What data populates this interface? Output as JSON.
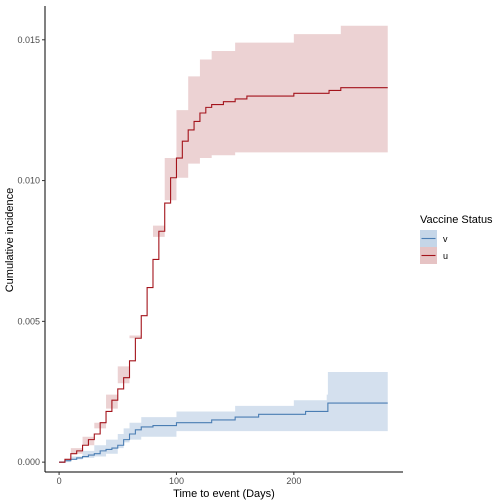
{
  "chart_data": {
    "type": "line",
    "subtype": "step",
    "title": "",
    "xlabel": "Time to event (Days)",
    "ylabel": "Cumulative incidence",
    "xlim": [
      -12,
      293
    ],
    "ylim": [
      -0.00035,
      0.0162
    ],
    "x_ticks": [
      0,
      100,
      200
    ],
    "x_tick_labels": [
      "0",
      "100",
      "200"
    ],
    "y_ticks": [
      0.0,
      0.005,
      0.01,
      0.015
    ],
    "y_tick_labels": [
      "0.000",
      "0.005",
      "0.010",
      "0.015"
    ],
    "grid": false,
    "legend": {
      "title": "Vaccine Status",
      "position": "right",
      "entries": [
        "v",
        "u"
      ]
    },
    "series": [
      {
        "name": "v",
        "color": "#4a7db3",
        "band_color": "#c5d6e8",
        "points": [
          [
            0,
            0.0
          ],
          [
            5,
            5e-05
          ],
          [
            10,
            0.0001
          ],
          [
            15,
            0.00015
          ],
          [
            20,
            0.0002
          ],
          [
            25,
            0.00025
          ],
          [
            30,
            0.0003
          ],
          [
            35,
            0.0004
          ],
          [
            40,
            0.00045
          ],
          [
            45,
            0.0005
          ],
          [
            50,
            0.0006
          ],
          [
            55,
            0.0008
          ],
          [
            60,
            0.001
          ],
          [
            65,
            0.00115
          ],
          [
            70,
            0.00125
          ],
          [
            80,
            0.0013
          ],
          [
            100,
            0.0014
          ],
          [
            130,
            0.0015
          ],
          [
            150,
            0.0016
          ],
          [
            170,
            0.0017
          ],
          [
            200,
            0.0017
          ],
          [
            210,
            0.0018
          ],
          [
            228,
            0.0018
          ],
          [
            229,
            0.0021
          ],
          [
            280,
            0.0021
          ]
        ],
        "lower": [
          [
            0,
            0.0
          ],
          [
            10,
            3e-05
          ],
          [
            20,
            0.0001
          ],
          [
            30,
            0.00015
          ],
          [
            40,
            0.0002
          ],
          [
            50,
            0.0003
          ],
          [
            55,
            0.0005
          ],
          [
            60,
            0.0007
          ],
          [
            70,
            0.0008
          ],
          [
            100,
            0.0009
          ],
          [
            150,
            0.0011
          ],
          [
            200,
            0.0011
          ],
          [
            228,
            0.0011
          ],
          [
            229,
            0.0011
          ],
          [
            280,
            0.0011
          ]
        ],
        "upper": [
          [
            0,
            0.0
          ],
          [
            10,
            0.0002
          ],
          [
            20,
            0.0004
          ],
          [
            30,
            0.0006
          ],
          [
            40,
            0.0008
          ],
          [
            50,
            0.001
          ],
          [
            55,
            0.0012
          ],
          [
            60,
            0.0014
          ],
          [
            70,
            0.0016
          ],
          [
            100,
            0.0018
          ],
          [
            150,
            0.002
          ],
          [
            200,
            0.0022
          ],
          [
            228,
            0.0024
          ],
          [
            229,
            0.0032
          ],
          [
            280,
            0.0032
          ]
        ]
      },
      {
        "name": "u",
        "color": "#a3131b",
        "band_color": "#e6c3c4",
        "points": [
          [
            0,
            0.0
          ],
          [
            5,
            0.0001
          ],
          [
            10,
            0.0003
          ],
          [
            15,
            0.0004
          ],
          [
            20,
            0.0006
          ],
          [
            25,
            0.0008
          ],
          [
            30,
            0.001
          ],
          [
            35,
            0.0014
          ],
          [
            40,
            0.0018
          ],
          [
            45,
            0.0022
          ],
          [
            50,
            0.0026
          ],
          [
            55,
            0.003
          ],
          [
            60,
            0.0036
          ],
          [
            65,
            0.0044
          ],
          [
            70,
            0.0052
          ],
          [
            75,
            0.0062
          ],
          [
            80,
            0.0072
          ],
          [
            85,
            0.0082
          ],
          [
            90,
            0.0092
          ],
          [
            95,
            0.0101
          ],
          [
            100,
            0.0108
          ],
          [
            105,
            0.0114
          ],
          [
            110,
            0.0118
          ],
          [
            115,
            0.0121
          ],
          [
            120,
            0.0124
          ],
          [
            125,
            0.0126
          ],
          [
            130,
            0.0127
          ],
          [
            140,
            0.0128
          ],
          [
            150,
            0.0129
          ],
          [
            160,
            0.013
          ],
          [
            200,
            0.0131
          ],
          [
            230,
            0.0132
          ],
          [
            240,
            0.0133
          ],
          [
            280,
            0.0133
          ]
        ],
        "lower": [
          [
            0,
            0.0
          ],
          [
            10,
            0.0001
          ],
          [
            20,
            0.0003
          ],
          [
            30,
            0.0006
          ],
          [
            40,
            0.0012
          ],
          [
            50,
            0.0019
          ],
          [
            60,
            0.0028
          ],
          [
            70,
            0.0044
          ],
          [
            80,
            0.0062
          ],
          [
            90,
            0.008
          ],
          [
            100,
            0.0093
          ],
          [
            110,
            0.0101
          ],
          [
            120,
            0.0106
          ],
          [
            130,
            0.0108
          ],
          [
            150,
            0.0109
          ],
          [
            200,
            0.011
          ],
          [
            240,
            0.011
          ],
          [
            280,
            0.011
          ]
        ],
        "upper": [
          [
            0,
            0.0001
          ],
          [
            10,
            0.0005
          ],
          [
            20,
            0.0009
          ],
          [
            30,
            0.0014
          ],
          [
            40,
            0.0024
          ],
          [
            50,
            0.0034
          ],
          [
            60,
            0.0045
          ],
          [
            70,
            0.0062
          ],
          [
            80,
            0.0084
          ],
          [
            90,
            0.0108
          ],
          [
            100,
            0.0125
          ],
          [
            110,
            0.0137
          ],
          [
            120,
            0.0143
          ],
          [
            130,
            0.0146
          ],
          [
            150,
            0.0149
          ],
          [
            200,
            0.0152
          ],
          [
            240,
            0.0155
          ],
          [
            280,
            0.0155
          ]
        ]
      }
    ]
  }
}
